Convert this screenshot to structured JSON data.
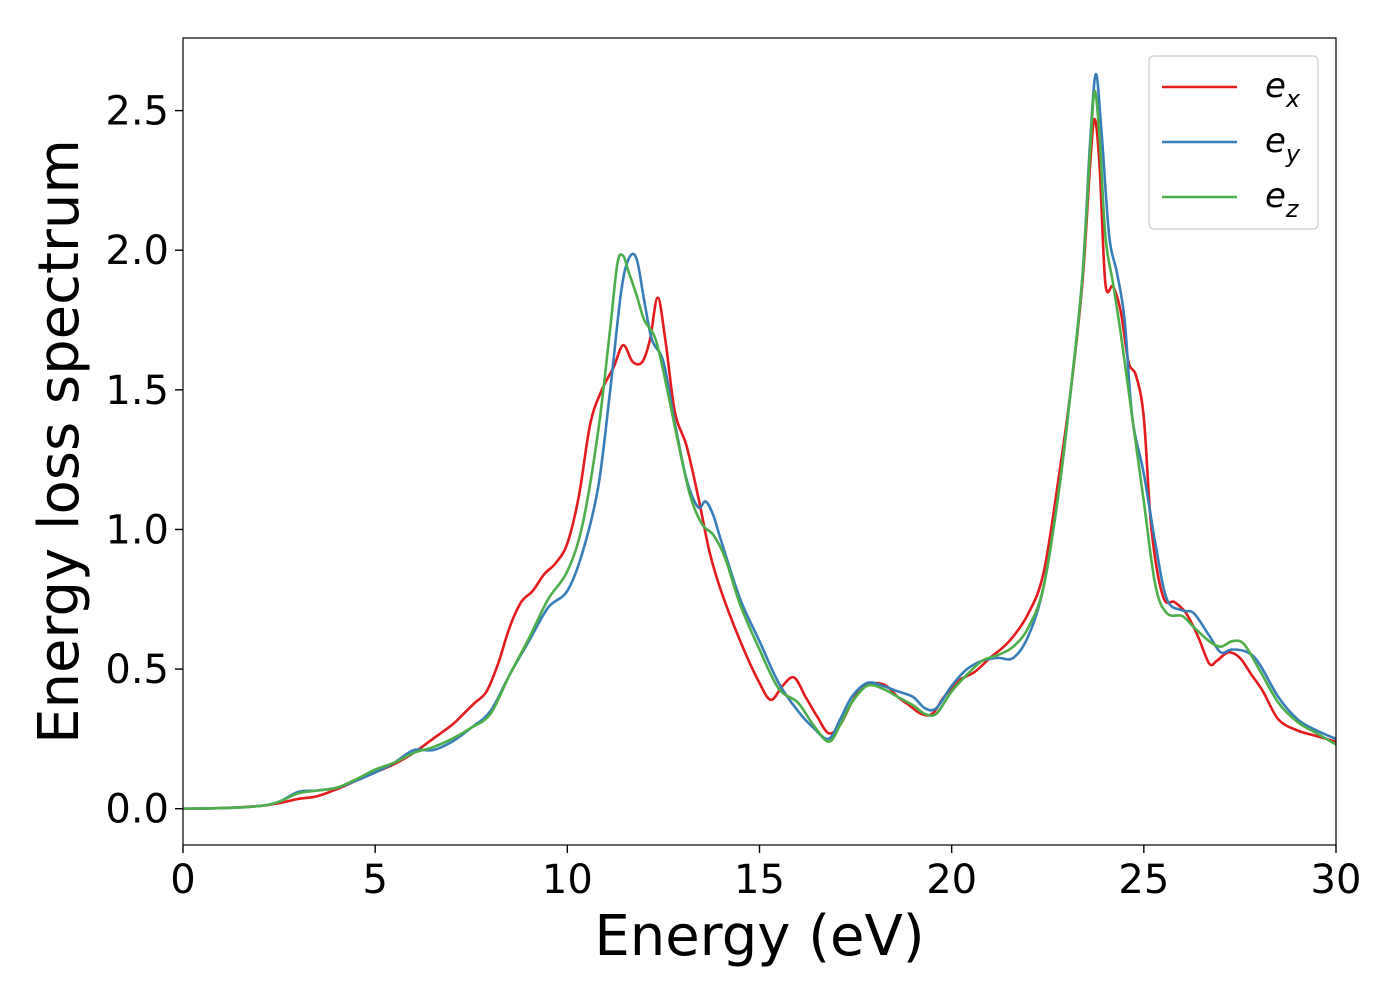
{
  "chart_data": {
    "type": "line",
    "title": "",
    "xlabel": "Energy (eV)",
    "ylabel": "Energy loss spectrum",
    "xlim": [
      0,
      30
    ],
    "ylim": [
      -0.13,
      2.76
    ],
    "xticks": [
      0,
      5,
      10,
      15,
      20,
      25,
      30
    ],
    "xtick_labels": [
      "0",
      "5",
      "10",
      "15",
      "20",
      "25",
      "30"
    ],
    "yticks": [
      0.0,
      0.5,
      1.0,
      1.5,
      2.0,
      2.5
    ],
    "ytick_labels": [
      "0.0",
      "0.5",
      "1.0",
      "1.5",
      "2.0",
      "2.5"
    ],
    "grid": false,
    "legend_position": "top-right",
    "series": [
      {
        "name": "e_x",
        "label_base": "e",
        "label_sub": "x",
        "color": "#e41a1c",
        "x": [
          0,
          1,
          2,
          2.5,
          3,
          3.5,
          4,
          4.5,
          5,
          5.5,
          6,
          6.5,
          7,
          7.3,
          7.6,
          7.9,
          8.2,
          8.5,
          8.8,
          9.1,
          9.4,
          9.7,
          10.0,
          10.3,
          10.6,
          10.9,
          11.2,
          11.45,
          11.7,
          11.95,
          12.15,
          12.35,
          12.55,
          12.8,
          13.1,
          13.4,
          13.7,
          14.0,
          14.5,
          15.0,
          15.3,
          15.6,
          15.9,
          16.2,
          16.5,
          16.8,
          17.1,
          17.4,
          17.7,
          18.0,
          18.3,
          18.6,
          18.9,
          19.2,
          19.5,
          19.8,
          20.2,
          20.6,
          21.0,
          21.5,
          22.0,
          22.4,
          22.8,
          23.1,
          23.4,
          23.6,
          23.72,
          23.85,
          24.0,
          24.2,
          24.4,
          24.6,
          24.8,
          25.0,
          25.2,
          25.5,
          25.8,
          26.1,
          26.4,
          26.7,
          26.9,
          27.2,
          27.5,
          27.8,
          28.1,
          28.5,
          29.0,
          29.5,
          30.0
        ],
        "y": [
          0.0,
          0.002,
          0.01,
          0.02,
          0.035,
          0.045,
          0.07,
          0.1,
          0.13,
          0.16,
          0.2,
          0.25,
          0.3,
          0.34,
          0.38,
          0.42,
          0.52,
          0.65,
          0.74,
          0.78,
          0.84,
          0.88,
          0.95,
          1.12,
          1.38,
          1.5,
          1.58,
          1.66,
          1.6,
          1.6,
          1.68,
          1.83,
          1.68,
          1.42,
          1.3,
          1.12,
          0.92,
          0.78,
          0.6,
          0.45,
          0.39,
          0.44,
          0.47,
          0.4,
          0.33,
          0.27,
          0.3,
          0.38,
          0.44,
          0.45,
          0.44,
          0.4,
          0.37,
          0.34,
          0.34,
          0.4,
          0.46,
          0.49,
          0.54,
          0.6,
          0.7,
          0.85,
          1.2,
          1.5,
          1.88,
          2.3,
          2.47,
          2.3,
          1.88,
          1.87,
          1.78,
          1.6,
          1.55,
          1.4,
          1.0,
          0.76,
          0.74,
          0.7,
          0.62,
          0.52,
          0.53,
          0.56,
          0.54,
          0.48,
          0.42,
          0.32,
          0.28,
          0.26,
          0.24
        ]
      },
      {
        "name": "e_y",
        "label_base": "e",
        "label_sub": "y",
        "color": "#377eb8",
        "x": [
          0,
          1,
          2,
          2.5,
          3,
          3.5,
          4,
          4.5,
          5,
          5.5,
          6,
          6.5,
          7,
          7.5,
          8.0,
          8.5,
          9.0,
          9.5,
          10.0,
          10.4,
          10.8,
          11.1,
          11.4,
          11.6,
          11.8,
          12.0,
          12.2,
          12.5,
          12.8,
          13.1,
          13.4,
          13.6,
          13.8,
          14.0,
          14.5,
          15.0,
          15.5,
          16.0,
          16.4,
          16.8,
          17.1,
          17.4,
          17.8,
          18.2,
          18.6,
          19.0,
          19.3,
          19.6,
          20.0,
          20.4,
          20.8,
          21.2,
          21.6,
          22.0,
          22.4,
          22.8,
          23.1,
          23.4,
          23.6,
          23.75,
          23.9,
          24.1,
          24.3,
          24.5,
          24.7,
          25.0,
          25.3,
          25.6,
          26.0,
          26.3,
          26.7,
          27.0,
          27.3,
          27.7,
          28.0,
          28.5,
          29.0,
          29.5,
          30.0
        ],
        "y": [
          0.0,
          0.002,
          0.01,
          0.025,
          0.06,
          0.065,
          0.075,
          0.1,
          0.13,
          0.165,
          0.21,
          0.21,
          0.24,
          0.29,
          0.35,
          0.48,
          0.6,
          0.72,
          0.78,
          0.92,
          1.15,
          1.48,
          1.85,
          1.97,
          1.97,
          1.82,
          1.68,
          1.6,
          1.38,
          1.18,
          1.08,
          1.1,
          1.05,
          0.96,
          0.75,
          0.6,
          0.45,
          0.35,
          0.29,
          0.25,
          0.32,
          0.4,
          0.45,
          0.44,
          0.42,
          0.4,
          0.36,
          0.36,
          0.44,
          0.5,
          0.53,
          0.54,
          0.54,
          0.62,
          0.8,
          1.15,
          1.5,
          1.9,
          2.38,
          2.63,
          2.42,
          2.05,
          1.92,
          1.75,
          1.4,
          1.2,
          0.95,
          0.75,
          0.71,
          0.7,
          0.62,
          0.56,
          0.57,
          0.56,
          0.52,
          0.4,
          0.32,
          0.28,
          0.25
        ]
      },
      {
        "name": "e_z",
        "label_base": "e",
        "label_sub": "z",
        "color": "#4daf4a",
        "x": [
          0,
          1,
          2,
          2.5,
          3,
          3.5,
          4,
          4.5,
          5,
          5.5,
          6,
          6.5,
          7,
          7.5,
          8.0,
          8.5,
          9.0,
          9.5,
          10.0,
          10.4,
          10.8,
          11.1,
          11.3,
          11.45,
          11.6,
          11.8,
          12.0,
          12.3,
          12.6,
          12.9,
          13.2,
          13.5,
          13.8,
          14.1,
          14.5,
          15.0,
          15.5,
          16.0,
          16.4,
          16.8,
          17.1,
          17.4,
          17.8,
          18.2,
          18.6,
          19.0,
          19.3,
          19.6,
          20.0,
          20.4,
          20.8,
          21.2,
          21.6,
          22.0,
          22.4,
          22.8,
          23.1,
          23.4,
          23.6,
          23.72,
          23.85,
          24.0,
          24.2,
          24.4,
          24.7,
          25.0,
          25.3,
          25.6,
          26.0,
          26.3,
          26.7,
          27.0,
          27.3,
          27.6,
          28.0,
          28.5,
          29.0,
          29.5,
          30.0
        ],
        "y": [
          0.0,
          0.002,
          0.01,
          0.025,
          0.055,
          0.065,
          0.075,
          0.105,
          0.14,
          0.165,
          0.2,
          0.22,
          0.25,
          0.29,
          0.34,
          0.48,
          0.61,
          0.75,
          0.85,
          1.02,
          1.35,
          1.7,
          1.95,
          1.98,
          1.92,
          1.84,
          1.75,
          1.68,
          1.5,
          1.3,
          1.12,
          1.02,
          0.98,
          0.9,
          0.73,
          0.57,
          0.43,
          0.38,
          0.3,
          0.24,
          0.3,
          0.38,
          0.44,
          0.43,
          0.4,
          0.37,
          0.34,
          0.34,
          0.42,
          0.48,
          0.53,
          0.55,
          0.58,
          0.65,
          0.8,
          1.15,
          1.5,
          1.9,
          2.35,
          2.57,
          2.4,
          2.05,
          1.88,
          1.7,
          1.4,
          1.1,
          0.8,
          0.7,
          0.69,
          0.65,
          0.6,
          0.58,
          0.6,
          0.59,
          0.5,
          0.38,
          0.31,
          0.27,
          0.23
        ]
      }
    ]
  }
}
